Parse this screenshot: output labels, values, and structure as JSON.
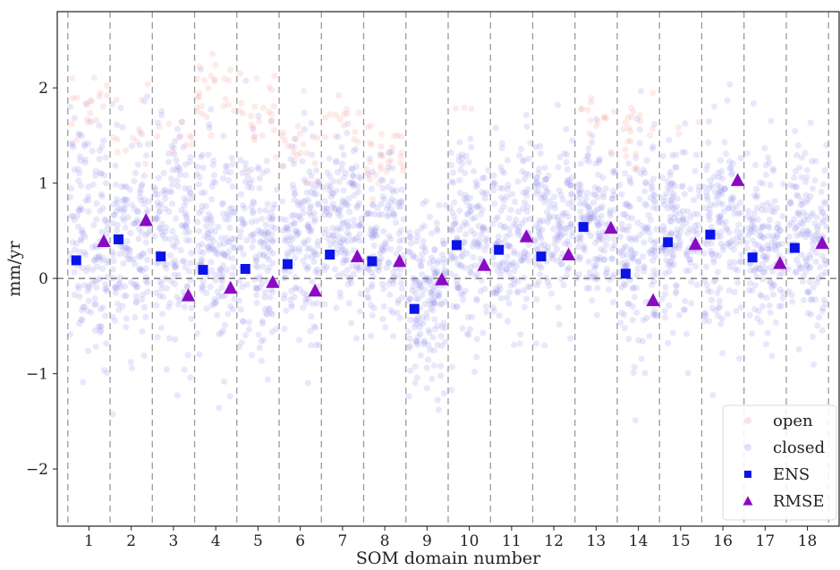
{
  "chart_data": {
    "type": "scatter",
    "title": "",
    "xlabel": "SOM domain number",
    "ylabel": "mm/yr",
    "x_ticks": [
      "1",
      "2",
      "3",
      "4",
      "5",
      "6",
      "7",
      "8",
      "9",
      "10",
      "11",
      "12",
      "13",
      "14",
      "15",
      "16",
      "17",
      "18"
    ],
    "y_ticks": [
      2,
      1,
      0,
      -1,
      -2
    ],
    "xlim": [
      0.25,
      18.75
    ],
    "ylim": [
      -2.6,
      2.8
    ],
    "grid": false,
    "zero_line": true,
    "domain_separators": true,
    "legend_position": "bottom-right",
    "legend": [
      {
        "name": "open",
        "marker": "circle",
        "color": "#f4a6a0"
      },
      {
        "name": "closed",
        "marker": "circle",
        "color": "#9b96ee"
      },
      {
        "name": "ENS",
        "marker": "square",
        "color": "#0a14e8"
      },
      {
        "name": "RMSE",
        "marker": "triangle",
        "color": "#8a0ac4"
      }
    ],
    "series": [
      {
        "name": "ENS",
        "marker": "square",
        "color": "#0a14e8",
        "x": [
          0.7,
          1.7,
          2.7,
          3.7,
          4.7,
          5.7,
          6.7,
          7.7,
          8.7,
          9.7,
          10.7,
          11.7,
          12.7,
          13.7,
          14.7,
          15.7,
          16.7,
          17.7
        ],
        "y": [
          0.19,
          0.41,
          0.23,
          0.09,
          0.1,
          0.15,
          0.25,
          0.18,
          -0.32,
          0.35,
          0.3,
          0.23,
          0.54,
          0.05,
          0.38,
          0.46,
          0.22,
          0.32
        ]
      },
      {
        "name": "RMSE",
        "marker": "triangle",
        "color": "#8a0ac4",
        "x": [
          1.35,
          2.35,
          3.35,
          4.35,
          5.35,
          6.35,
          7.35,
          8.35,
          9.35,
          10.35,
          11.35,
          12.35,
          13.35,
          14.35,
          15.35,
          16.35,
          17.35,
          18.35
        ],
        "y": [
          0.39,
          0.61,
          -0.18,
          -0.1,
          -0.04,
          -0.13,
          0.23,
          0.18,
          -0.01,
          0.14,
          0.44,
          0.25,
          0.53,
          -0.23,
          0.36,
          1.03,
          0.16,
          0.37
        ]
      }
    ],
    "background_scatter": {
      "closed": {
        "color": "#9b96ee",
        "domains": [
          {
            "domain": 1,
            "mean": 0.45,
            "spread": 0.85,
            "n": 150
          },
          {
            "domain": 2,
            "mean": 0.4,
            "spread": 0.7,
            "n": 150
          },
          {
            "domain": 3,
            "mean": 0.4,
            "spread": 0.75,
            "n": 150
          },
          {
            "domain": 4,
            "mean": 0.35,
            "spread": 0.8,
            "n": 150
          },
          {
            "domain": 5,
            "mean": 0.3,
            "spread": 0.75,
            "n": 150
          },
          {
            "domain": 6,
            "mean": 0.4,
            "spread": 0.7,
            "n": 150
          },
          {
            "domain": 7,
            "mean": 0.55,
            "spread": 0.6,
            "n": 150
          },
          {
            "domain": 8,
            "mean": 0.3,
            "spread": 0.6,
            "n": 140
          },
          {
            "domain": 9,
            "mean": -0.2,
            "spread": 0.6,
            "n": 170
          },
          {
            "domain": 10,
            "mean": 0.45,
            "spread": 0.65,
            "n": 150
          },
          {
            "domain": 11,
            "mean": 0.45,
            "spread": 0.65,
            "n": 150
          },
          {
            "domain": 12,
            "mean": 0.5,
            "spread": 0.65,
            "n": 150
          },
          {
            "domain": 13,
            "mean": 0.55,
            "spread": 0.6,
            "n": 150
          },
          {
            "domain": 14,
            "mean": 0.2,
            "spread": 0.75,
            "n": 150
          },
          {
            "domain": 15,
            "mean": 0.5,
            "spread": 0.6,
            "n": 150
          },
          {
            "domain": 16,
            "mean": 0.55,
            "spread": 0.7,
            "n": 150
          },
          {
            "domain": 17,
            "mean": 0.4,
            "spread": 0.7,
            "n": 150
          },
          {
            "domain": 18,
            "mean": 0.45,
            "spread": 0.6,
            "n": 150
          }
        ]
      },
      "open": {
        "color": "#f4a6a0",
        "domains": [
          {
            "domain": 1,
            "mean": 1.85,
            "spread": 0.25,
            "n": 18
          },
          {
            "domain": 2,
            "mean": 1.45,
            "spread": 0.3,
            "n": 12
          },
          {
            "domain": 3,
            "mean": 1.5,
            "spread": 0.2,
            "n": 10
          },
          {
            "domain": 4,
            "mean": 1.9,
            "spread": 0.3,
            "n": 25
          },
          {
            "domain": 5,
            "mean": 1.75,
            "spread": 0.3,
            "n": 25
          },
          {
            "domain": 6,
            "mean": 1.3,
            "spread": 0.25,
            "n": 20
          },
          {
            "domain": 7,
            "mean": 1.55,
            "spread": 0.25,
            "n": 15
          },
          {
            "domain": 8,
            "mean": 1.3,
            "spread": 0.25,
            "n": 30
          },
          {
            "domain": 10,
            "mean": 1.8,
            "spread": 0.1,
            "n": 3
          },
          {
            "domain": 13,
            "mean": 1.65,
            "spread": 0.2,
            "n": 14
          },
          {
            "domain": 14,
            "mean": 1.55,
            "spread": 0.3,
            "n": 20
          },
          {
            "domain": 15,
            "mean": 1.6,
            "spread": 0.1,
            "n": 3
          }
        ]
      }
    }
  }
}
